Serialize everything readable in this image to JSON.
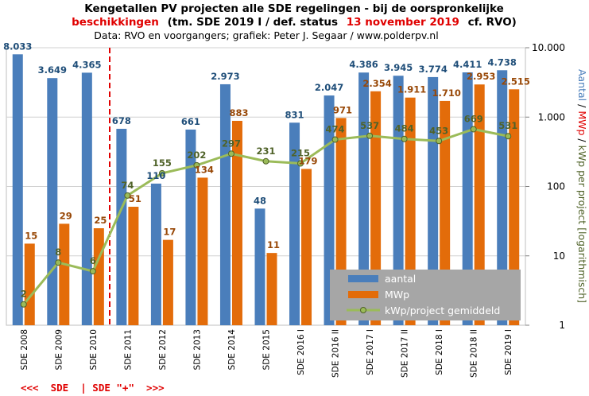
{
  "title": {
    "line1": "Kengetallen PV projecten alle SDE regelingen - bij de oorspronkelijke",
    "line2_red": "beschikkingen",
    "line2_black_a": "(tm. SDE 2019 I / def. status",
    "line2_red_date": "13 november 2019",
    "line2_black_b": "cf. RVO)",
    "line3": "Data: RVO en voorgangers; grafiek: Peter J. Segaar / www.polderpv.nl"
  },
  "y_axis_label": {
    "part1": "Aantal",
    "sep1": " / ",
    "part2": "MWp",
    "sep2": " / ",
    "part3": "kWp per project [logarithmisch]"
  },
  "era_label": "<<<  SDE  | SDE \"+\"  >>>",
  "colors": {
    "aantal": "#4a7ebb",
    "mwp": "#e36c0a",
    "kwp_line": "#9bbb59",
    "kwp_label": "#4f6228",
    "aantal_label": "#1f4e79",
    "mwp_label": "#984807",
    "divider": "#e00000",
    "legend_bg": "#a6a6a6"
  },
  "legend": {
    "aantal": "aantal",
    "mwp": "MWp",
    "kwp": "kWp/project gemiddeld"
  },
  "chart_data": {
    "type": "bar",
    "scale": "log",
    "ylim": [
      1,
      10000
    ],
    "y_ticks": [
      {
        "value": 1,
        "label": "1"
      },
      {
        "value": 10,
        "label": "10"
      },
      {
        "value": 100,
        "label": "100"
      },
      {
        "value": 1000,
        "label": "1.000"
      },
      {
        "value": 10000,
        "label": "10.000"
      }
    ],
    "categories": [
      "SDE 2008",
      "SDE 2009",
      "SDE 2010",
      "SDE 2011",
      "SDE 2012",
      "SDE 2013",
      "SDE 2014",
      "SDE 2015",
      "SDE 2016 I",
      "SDE 2016 II",
      "SDE 2017 I",
      "SDE 2017 II",
      "SDE 2018 I",
      "SDE 2018 II",
      "SDE 2019 I"
    ],
    "series": [
      {
        "name": "aantal",
        "type": "bar",
        "values": [
          8033,
          3649,
          4365,
          678,
          110,
          661,
          2973,
          48,
          831,
          2047,
          4386,
          3945,
          3774,
          4411,
          4738
        ],
        "labels": [
          "8.033",
          "3.649",
          "4.365",
          "678",
          "110",
          "661",
          "2.973",
          "48",
          "831",
          "2.047",
          "4.386",
          "3.945",
          "3.774",
          "4.411",
          "4.738"
        ]
      },
      {
        "name": "MWp",
        "type": "bar",
        "values": [
          15,
          29,
          25,
          51,
          17,
          134,
          883,
          11,
          179,
          971,
          2354,
          1911,
          1710,
          2953,
          2515
        ],
        "labels": [
          "15",
          "29",
          "25",
          "51",
          "17",
          "134",
          "883",
          "11",
          "179",
          "971",
          "2.354",
          "1.911",
          "1.710",
          "2.953",
          "2.515"
        ]
      },
      {
        "name": "kWp/project gemiddeld",
        "type": "line",
        "values": [
          2,
          8,
          6,
          74,
          155,
          202,
          297,
          231,
          215,
          474,
          537,
          484,
          453,
          669,
          531
        ],
        "labels": [
          "2",
          "8",
          "6",
          "74",
          "155",
          "202",
          "297",
          "231",
          "215",
          "474",
          "537",
          "484",
          "453",
          "669",
          "531"
        ]
      }
    ]
  }
}
